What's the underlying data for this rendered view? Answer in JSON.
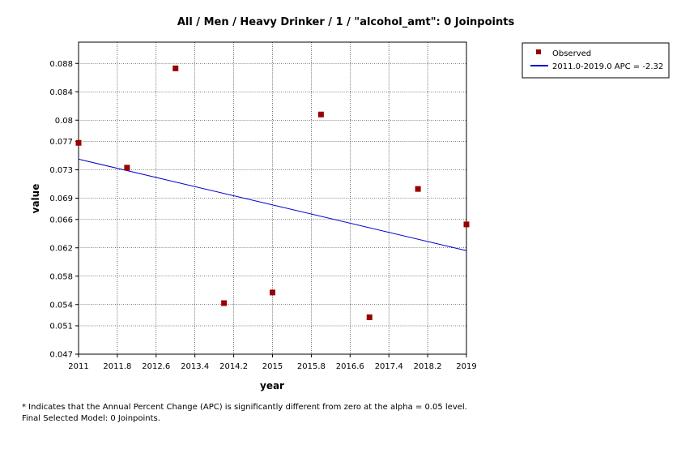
{
  "chart_data": {
    "type": "scatter",
    "title": "All / Men / Heavy Drinker / 1 / \"alcohol_amt\": 0 Joinpoints",
    "xlabel": "year",
    "ylabel": "value",
    "xlim": [
      2011,
      2019
    ],
    "ylim": [
      0.047,
      0.091
    ],
    "x_ticks": [
      2011,
      2011.8,
      2012.6,
      2013.4,
      2014.2,
      2015,
      2015.8,
      2016.6,
      2017.4,
      2018.2,
      2019
    ],
    "x_tick_labels": [
      "2011",
      "2011.8",
      "2012.6",
      "2013.4",
      "2014.2",
      "2015",
      "2015.8",
      "2016.6",
      "2017.4",
      "2018.2",
      "2019"
    ],
    "y_ticks": [
      0.047,
      0.051,
      0.054,
      0.058,
      0.062,
      0.066,
      0.069,
      0.073,
      0.077,
      0.08,
      0.084,
      0.088
    ],
    "y_tick_labels": [
      "0.047",
      "0.051",
      "0.054",
      "0.058",
      "0.062",
      "0.066",
      "0.069",
      "0.073",
      "0.077",
      "0.08",
      "0.084",
      "0.088"
    ],
    "grid": true,
    "legend_position": "top-right",
    "series": [
      {
        "name": "Observed",
        "kind": "points",
        "color": "#990000",
        "x": [
          2011,
          2012,
          2013,
          2014,
          2015,
          2016,
          2017,
          2018,
          2019
        ],
        "y": [
          0.0768,
          0.0733,
          0.0873,
          0.0542,
          0.0557,
          0.0808,
          0.0522,
          0.0703,
          0.0653
        ]
      },
      {
        "name": "2011.0-2019.0 APC  = -2.32",
        "kind": "line",
        "color": "#0000cc",
        "x": [
          2011,
          2019
        ],
        "y": [
          0.0745,
          0.0616
        ]
      }
    ]
  },
  "footnote": {
    "line1": "* Indicates that the Annual Percent Change (APC) is significantly different from zero at the alpha = 0.05 level.",
    "line2": "Final Selected Model: 0 Joinpoints."
  }
}
